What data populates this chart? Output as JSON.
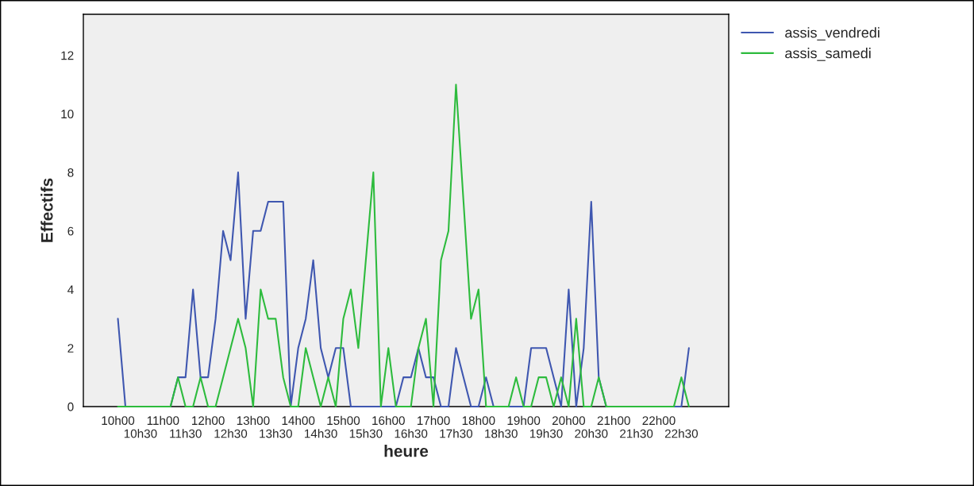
{
  "chart_data": {
    "type": "line",
    "xlabel": "heure",
    "ylabel": "Effectifs",
    "categories": [
      "10h00",
      null,
      null,
      "10h30",
      null,
      null,
      "11h00",
      null,
      null,
      "11h30",
      null,
      null,
      "12h00",
      null,
      null,
      "12h30",
      null,
      null,
      "13h00",
      null,
      null,
      "13h30",
      null,
      null,
      "14h00",
      null,
      null,
      "14h30",
      null,
      null,
      "15h00",
      null,
      null,
      "15h30",
      null,
      null,
      "16h00",
      null,
      null,
      "16h30",
      null,
      null,
      "17h00",
      null,
      null,
      "17h30",
      null,
      null,
      "18h00",
      null,
      null,
      "18h30",
      null,
      null,
      "19h00",
      null,
      null,
      "19h30",
      null,
      null,
      "20h00",
      null,
      null,
      "20h30",
      null,
      null,
      "21h00",
      null,
      null,
      "21h30",
      null,
      null,
      "22h00",
      null,
      null,
      "22h30",
      null
    ],
    "series": [
      {
        "name": "assis_vendredi",
        "color": "#3f57b0",
        "values": [
          3,
          0,
          0,
          0,
          0,
          0,
          0,
          0,
          1,
          1,
          4,
          1,
          1,
          3,
          6,
          5,
          8,
          3,
          6,
          6,
          7,
          7,
          7,
          0,
          2,
          3,
          5,
          2,
          1,
          2,
          2,
          0,
          0,
          0,
          0,
          0,
          0,
          0,
          1,
          1,
          2,
          1,
          1,
          0,
          0,
          2,
          1,
          0,
          0,
          1,
          0,
          0,
          0,
          0,
          0,
          2,
          2,
          2,
          1,
          0,
          4,
          0,
          2,
          7,
          1,
          0,
          0,
          0,
          0,
          0,
          0,
          0,
          0,
          0,
          0,
          0,
          2
        ]
      },
      {
        "name": "assis_samedi",
        "color": "#2dbb3d",
        "values": [
          0,
          0,
          0,
          0,
          0,
          0,
          0,
          0,
          1,
          0,
          0,
          1,
          0,
          0,
          1,
          2,
          3,
          2,
          0,
          4,
          3,
          3,
          1,
          0,
          0,
          2,
          1,
          0,
          1,
          0,
          3,
          4,
          2,
          5,
          8,
          0,
          2,
          0,
          0,
          0,
          2,
          3,
          0,
          5,
          6,
          11,
          7,
          3,
          4,
          0,
          0,
          0,
          0,
          1,
          0,
          0,
          1,
          1,
          0,
          1,
          0,
          3,
          0,
          0,
          1,
          0,
          0,
          0,
          0,
          0,
          0,
          0,
          0,
          0,
          0,
          1,
          0
        ]
      }
    ],
    "ylim": [
      0,
      13.4
    ],
    "yticks": [
      0,
      2,
      4,
      6,
      8,
      10,
      12
    ],
    "grid": false,
    "legend": "top right",
    "marker": "none",
    "line_style": "solid"
  }
}
